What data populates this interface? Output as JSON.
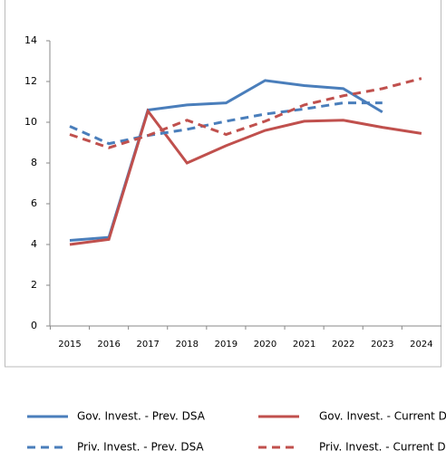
{
  "chart_data": {
    "type": "line",
    "categories": [
      "2015",
      "2016",
      "2017",
      "2018",
      "2019",
      "2020",
      "2021",
      "2022",
      "2023",
      "2024"
    ],
    "series": [
      {
        "name": "Gov. Invest. - Prev. DSA",
        "color": "#4a7ebb",
        "dashed": false,
        "values": [
          4.2,
          4.35,
          10.6,
          10.85,
          10.95,
          12.05,
          11.8,
          11.65,
          10.5,
          null
        ]
      },
      {
        "name": "Gov. Invest. - Current DSA",
        "color": "#c0504d",
        "dashed": false,
        "values": [
          4.0,
          4.25,
          10.55,
          8.0,
          8.85,
          9.6,
          10.05,
          10.1,
          9.75,
          9.45
        ]
      },
      {
        "name": "Priv. Invest. - Prev. DSA",
        "color": "#4a7ebb",
        "dashed": true,
        "values": [
          9.8,
          8.95,
          9.35,
          9.65,
          10.05,
          10.4,
          10.65,
          10.95,
          10.95,
          null
        ]
      },
      {
        "name": "Priv. Invest. - Current DSA",
        "color": "#c0504d",
        "dashed": true,
        "values": [
          9.4,
          8.75,
          9.35,
          10.1,
          9.4,
          10.05,
          10.85,
          11.3,
          11.65,
          12.15
        ]
      }
    ],
    "ylim": [
      0,
      14
    ],
    "yticks": [
      0,
      2,
      4,
      6,
      8,
      10,
      12,
      14
    ],
    "grid": false
  }
}
